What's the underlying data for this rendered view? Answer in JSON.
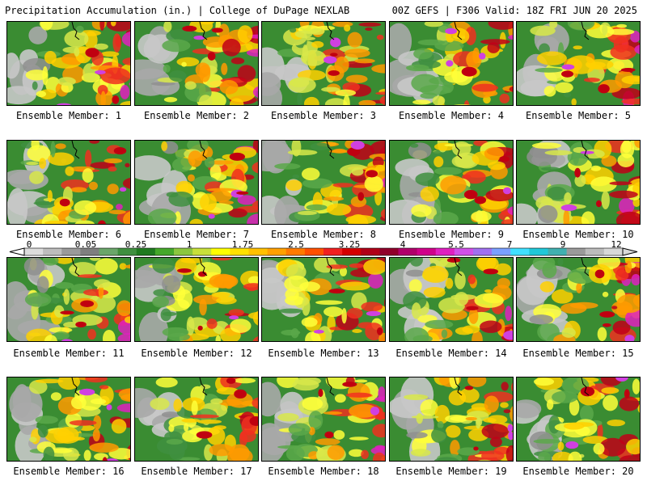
{
  "header": {
    "left": "Precipitation Accumulation (in.) | College of DuPage NEXLAB",
    "right": "00Z GEFS | F306 Valid: 18Z FRI JUN 20 2025"
  },
  "colorbar": {
    "labels": [
      "0",
      "0.05",
      "0.25",
      "1",
      "1.75",
      "2.5",
      "3.25",
      "4",
      "5.5",
      "7",
      "9",
      "12"
    ],
    "colors": [
      "#dcdcdc",
      "#bdbdbd",
      "#9a9a9a",
      "#7f7f7f",
      "#6aa66a",
      "#3f8f3f",
      "#1f7a1f",
      "#45a82a",
      "#8cc63f",
      "#c8e03a",
      "#ffff00",
      "#ffe000",
      "#ffc000",
      "#ffa000",
      "#ff7a00",
      "#ff5000",
      "#f02020",
      "#d40000",
      "#b00018",
      "#90002a",
      "#b0006a",
      "#d0008a",
      "#e020c0",
      "#d050e8",
      "#a070f0",
      "#7aa0ff",
      "#40e0ff",
      "#20c8d8",
      "#40b0b0",
      "#9a9a9a",
      "#bcbcbc",
      "#d8d8d8"
    ]
  },
  "members": [
    {
      "label": "Ensemble Member: 1"
    },
    {
      "label": "Ensemble Member: 2"
    },
    {
      "label": "Ensemble Member: 3"
    },
    {
      "label": "Ensemble Member: 4"
    },
    {
      "label": "Ensemble Member: 5"
    },
    {
      "label": "Ensemble Member: 6"
    },
    {
      "label": "Ensemble Member: 7"
    },
    {
      "label": "Ensemble Member: 8"
    },
    {
      "label": "Ensemble Member: 9"
    },
    {
      "label": "Ensemble Member: 10"
    },
    {
      "label": "Ensemble Member: 11"
    },
    {
      "label": "Ensemble Member: 12"
    },
    {
      "label": "Ensemble Member: 13"
    },
    {
      "label": "Ensemble Member: 14"
    },
    {
      "label": "Ensemble Member: 15"
    },
    {
      "label": "Ensemble Member: 16"
    },
    {
      "label": "Ensemble Member: 17"
    },
    {
      "label": "Ensemble Member: 18"
    },
    {
      "label": "Ensemble Member: 19"
    },
    {
      "label": "Ensemble Member: 20"
    }
  ]
}
